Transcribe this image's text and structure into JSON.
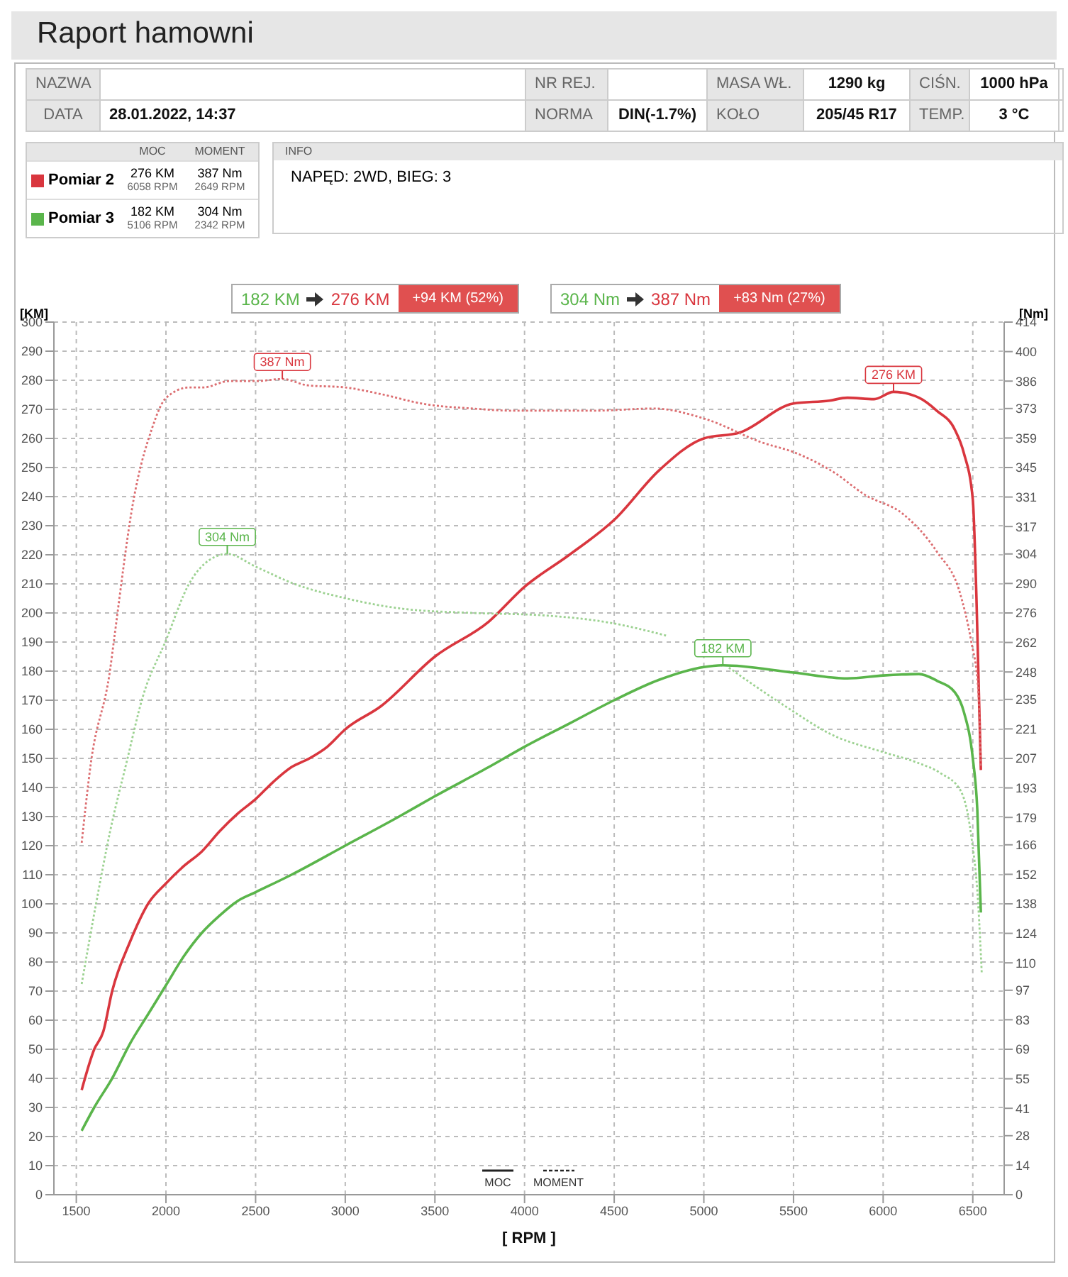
{
  "chart_data": {
    "type": "line",
    "title": "Raport hamowni",
    "xlabel": "[ RPM ]",
    "ylabel": "[KM]",
    "y2label": "[Nm]",
    "xlim": [
      1375,
      6675
    ],
    "xticks": [
      1500,
      2000,
      2500,
      3000,
      3500,
      4000,
      4500,
      5000,
      5500,
      6000,
      6500
    ],
    "ylim": [
      0,
      300
    ],
    "yticks": [
      0,
      10,
      20,
      30,
      40,
      50,
      60,
      70,
      80,
      90,
      100,
      110,
      120,
      130,
      140,
      150,
      160,
      170,
      180,
      190,
      200,
      210,
      220,
      230,
      240,
      250,
      260,
      270,
      280,
      290,
      300
    ],
    "y2lim": [
      0,
      414
    ],
    "y2ticks": [
      0,
      14,
      28,
      41,
      55,
      69,
      83,
      97,
      110,
      124,
      138,
      152,
      166,
      179,
      193,
      207,
      221,
      235,
      248,
      262,
      276,
      290,
      304,
      317,
      331,
      345,
      359,
      373,
      386,
      400,
      414
    ],
    "grid": true,
    "legend": "top left",
    "marker": "none",
    "series": [
      {
        "name": "Pomiar 2",
        "color": "#d9363e",
        "line_style": "solid",
        "x": [
          1530,
          1600,
          1650,
          1700,
          1800,
          1900,
          2000,
          2100,
          2200,
          2300,
          2400,
          2500,
          2600,
          2700,
          2800,
          2900,
          3000,
          3200,
          3500,
          3800,
          4000,
          4250,
          4500,
          4750,
          5000,
          5200,
          5500,
          5700,
          5800,
          5950,
          6058,
          6200,
          6300,
          6400,
          6450,
          6500,
          6520,
          6545
        ],
        "values": [
          36,
          50,
          56,
          70,
          87,
          100,
          107,
          113,
          118,
          125,
          131,
          136,
          142,
          147,
          150,
          154,
          160,
          168,
          185,
          197,
          209,
          220,
          232,
          249,
          260,
          262,
          272,
          273,
          274,
          273.5,
          276,
          274,
          269.5,
          263,
          255,
          239,
          206,
          146
        ]
      },
      {
        "name": "Pomiar 3",
        "color": "#5ab54b",
        "line_style": "solid",
        "x": [
          1530,
          1600,
          1700,
          1800,
          1900,
          2000,
          2100,
          2200,
          2300,
          2400,
          2500,
          2700,
          3000,
          3300,
          3500,
          3800,
          4000,
          4250,
          4500,
          4750,
          5000,
          5106,
          5500,
          5800,
          6000,
          6200,
          6300,
          6400,
          6450,
          6500,
          6525,
          6545
        ],
        "values": [
          22,
          30,
          40,
          52,
          62,
          72,
          82,
          90,
          96,
          101,
          104,
          110,
          120,
          130,
          137,
          147,
          154,
          162,
          170,
          177,
          181.4,
          182,
          179.5,
          177.5,
          178.5,
          179,
          176.7,
          172.7,
          166,
          150,
          132.5,
          97
        ]
      },
      {
        "color": "#dc6e71",
        "axis": "y2",
        "line_style": "dotted",
        "x": [
          1530,
          1580,
          1690,
          1710,
          1820,
          1920,
          2000,
          2130,
          2210,
          2350,
          2500,
          2649,
          2790,
          3000,
          3190,
          3450,
          3710,
          3920,
          4400,
          4720,
          5010,
          5320,
          5510,
          5720,
          5900,
          6110,
          6300,
          6430,
          6490,
          6530,
          6545
        ],
        "values": [
          167,
          204,
          250,
          263,
          330,
          363,
          378,
          383,
          383,
          386,
          386,
          387,
          384,
          383,
          380,
          375,
          373,
          372,
          372,
          373,
          368,
          357,
          352,
          343,
          332,
          323,
          305,
          285,
          263,
          240,
          203
        ]
      },
      {
        "color": "#9dd292",
        "axis": "y2",
        "line_style": "dotted",
        "x": [
          1530,
          1610,
          1690,
          1780,
          1870,
          2000,
          2130,
          2240,
          2342,
          2500,
          2710,
          3000,
          3320,
          3710,
          4080,
          4500,
          4800,
          5010,
          5140,
          5450,
          5720,
          6000,
          6190,
          6320,
          6430,
          6490,
          6530,
          6550
        ],
        "values": [
          100,
          138,
          173,
          205,
          236,
          263,
          290,
          301,
          304,
          298,
          290,
          283,
          278,
          276,
          275,
          271,
          265,
          null,
          250,
          232,
          218,
          210,
          205,
          200,
          192,
          171,
          138,
          105
        ]
      }
    ],
    "annotations": [
      "NAZWA",
      "NR REJ.",
      "MASA WŁ.",
      "1290 kg",
      "CIŚN.",
      "1000 hPa",
      "DATA",
      "28.01.2022, 14:37",
      "NORMA",
      "DIN(-1.7%)",
      "KOŁO",
      "205/45 R17",
      "TEMP.",
      "3 °C",
      "MOC",
      "MOMENT",
      "276 KM",
      "6058 RPM",
      "387 Nm",
      "2649 RPM",
      "182 KM",
      "5106 RPM",
      "304 Nm",
      "2342 RPM",
      "INFO",
      "NAPĘD: 2WD,  BIEG: 3",
      "182 KM",
      "276 KM",
      "+94 KM  (52%)",
      "304 Nm",
      "387 Nm",
      "+83 Nm  (27%)",
      "MOC",
      "MOMENT",
      "387 Nm",
      "304 Nm",
      {
        "text": "276 KM",
        "x": 6058,
        "y": 276
      },
      {
        "text": "182 KM",
        "x": 5106,
        "y": 182
      }
    ]
  }
}
